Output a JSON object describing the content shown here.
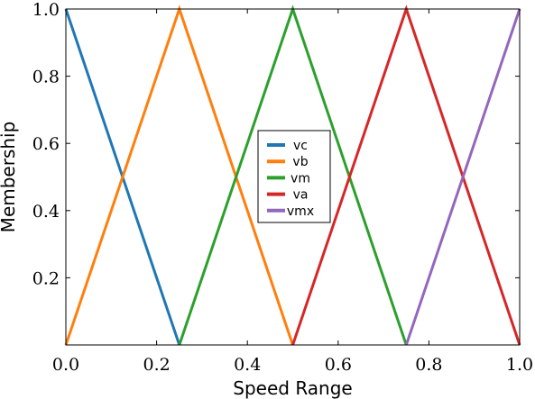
{
  "chart_data": {
    "type": "line",
    "xlabel": "Speed Range",
    "ylabel": "Membership",
    "xlim": [
      0.0,
      1.0
    ],
    "ylim": [
      0.0,
      1.0
    ],
    "x_ticks": [
      {
        "v": 0.0,
        "label": "0.0"
      },
      {
        "v": 0.2,
        "label": "0.2"
      },
      {
        "v": 0.4,
        "label": "0.4"
      },
      {
        "v": 0.6,
        "label": "0.6"
      },
      {
        "v": 0.8,
        "label": "0.8"
      },
      {
        "v": 1.0,
        "label": "1.0"
      }
    ],
    "y_ticks": [
      {
        "v": 0.2,
        "label": "0.2"
      },
      {
        "v": 0.4,
        "label": "0.4"
      },
      {
        "v": 0.6,
        "label": "0.6"
      },
      {
        "v": 0.8,
        "label": "0.8"
      },
      {
        "v": 1.0,
        "label": "1.0"
      }
    ],
    "grid": false,
    "legend_position": "center",
    "series": [
      {
        "name": "vc",
        "color": "#1f77b4",
        "x": [
          0.0,
          0.25
        ],
        "y": [
          1.0,
          0.0
        ]
      },
      {
        "name": "vb",
        "color": "#ff7f0e",
        "x": [
          0.0,
          0.25,
          0.5
        ],
        "y": [
          0.0,
          1.0,
          0.0
        ]
      },
      {
        "name": "vm",
        "color": "#2ca02c",
        "x": [
          0.25,
          0.5,
          0.75
        ],
        "y": [
          0.0,
          1.0,
          0.0
        ]
      },
      {
        "name": "va",
        "color": "#d62728",
        "x": [
          0.5,
          0.75,
          1.0
        ],
        "y": [
          0.0,
          1.0,
          0.0
        ]
      },
      {
        "name": "vmx",
        "color": "#9467bd",
        "x": [
          0.75,
          1.0
        ],
        "y": [
          0.0,
          1.0
        ]
      }
    ]
  }
}
